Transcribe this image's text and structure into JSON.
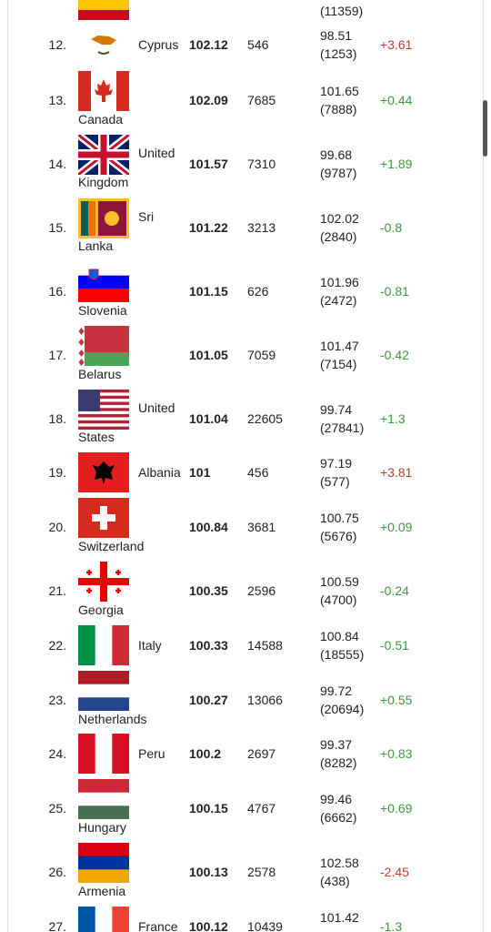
{
  "table": {
    "rows": [
      {
        "prev_count": "(11359)"
      },
      {
        "rank": "12.",
        "country": "Cyprus",
        "score": "102.12",
        "count": "546",
        "prev_score": "98.51",
        "prev_count": "(1253)",
        "change": "+3.61",
        "change_color": "#c8372d"
      },
      {
        "rank": "13.",
        "country": "Canada",
        "score": "102.09",
        "count": "7685",
        "prev_score": "101.65",
        "prev_count": "(7888)",
        "change": "+0.44",
        "change_color": "#3c9a3c"
      },
      {
        "rank": "14.",
        "country": "United Kingdom",
        "score": "101.57",
        "count": "7310",
        "prev_score": "99.68",
        "prev_count": "(9787)",
        "change": "+1.89",
        "change_color": "#3c9a3c"
      },
      {
        "rank": "15.",
        "country": "Sri Lanka",
        "score": "101.22",
        "count": "3213",
        "prev_score": "102.02",
        "prev_count": "(2840)",
        "change": "-0.8",
        "change_color": "#3c9a3c"
      },
      {
        "rank": "16.",
        "country": "Slovenia",
        "score": "101.15",
        "count": "626",
        "prev_score": "101.96",
        "prev_count": "(2472)",
        "change": "-0.81",
        "change_color": "#3c9a3c"
      },
      {
        "rank": "17.",
        "country": "Belarus",
        "score": "101.05",
        "count": "7059",
        "prev_score": "101.47",
        "prev_count": "(7154)",
        "change": "-0.42",
        "change_color": "#3c9a3c"
      },
      {
        "rank": "18.",
        "country": "United States",
        "score": "101.04",
        "count": "22605",
        "prev_score": "99.74",
        "prev_count": "(27841)",
        "change": "+1.3",
        "change_color": "#3c9a3c"
      },
      {
        "rank": "19.",
        "country": "Albania",
        "score": "101",
        "count": "456",
        "prev_score": "97.19",
        "prev_count": "(577)",
        "change": "+3.81",
        "change_color": "#c8372d"
      },
      {
        "rank": "20.",
        "country": "Switzerland",
        "score": "100.84",
        "count": "3681",
        "prev_score": "100.75",
        "prev_count": "(5676)",
        "change": "+0.09",
        "change_color": "#3c9a3c"
      },
      {
        "rank": "21.",
        "country": "Georgia",
        "score": "100.35",
        "count": "2596",
        "prev_score": "100.59",
        "prev_count": "(4700)",
        "change": "-0.24",
        "change_color": "#3c9a3c"
      },
      {
        "rank": "22.",
        "country": "Italy",
        "score": "100.33",
        "count": "14588",
        "prev_score": "100.84",
        "prev_count": "(18555)",
        "change": "-0.51",
        "change_color": "#3c9a3c"
      },
      {
        "rank": "23.",
        "country": "Netherlands",
        "score": "100.27",
        "count": "13066",
        "prev_score": "99.72",
        "prev_count": "(20694)",
        "change": "+0.55",
        "change_color": "#3c9a3c"
      },
      {
        "rank": "24.",
        "country": "Peru",
        "score": "100.2",
        "count": "2697",
        "prev_score": "99.37",
        "prev_count": "(8282)",
        "change": "+0.83",
        "change_color": "#3c9a3c"
      },
      {
        "rank": "25.",
        "country": "Hungary",
        "score": "100.15",
        "count": "4767",
        "prev_score": "99.46",
        "prev_count": "(6662)",
        "change": "+0.69",
        "change_color": "#3c9a3c"
      },
      {
        "rank": "26.",
        "country": "Armenia",
        "score": "100.13",
        "count": "2578",
        "prev_score": "102.58",
        "prev_count": "(438)",
        "change": "-2.45",
        "change_color": "#c8372d"
      },
      {
        "rank": "27.",
        "country": "France",
        "score": "100.12",
        "count": "10439",
        "prev_score": "101.42",
        "change": "-1.3",
        "change_color": "#3c9a3c"
      }
    ]
  }
}
